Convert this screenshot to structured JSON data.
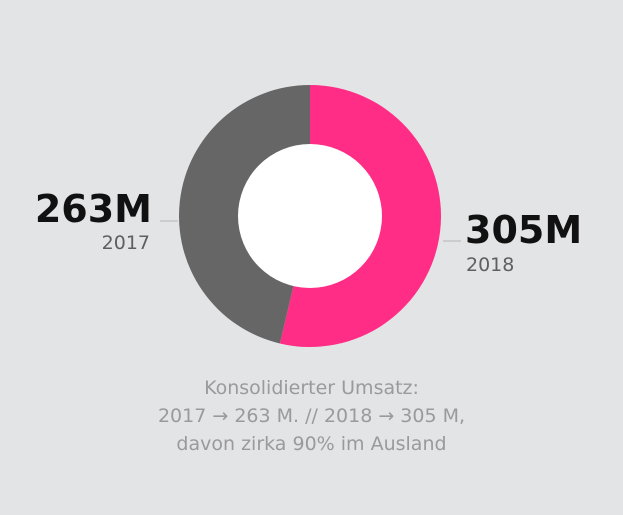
{
  "chart_data": {
    "type": "pie",
    "variant": "donut",
    "slices": [
      {
        "label": "2018",
        "value": 305,
        "value_label": "305M",
        "color": "#ff2d85"
      },
      {
        "label": "2017",
        "value": 263,
        "value_label": "263M",
        "color": "#666666"
      }
    ],
    "unit": "M",
    "caption_lines": [
      "Konsolidierter Umsatz:",
      "2017 → 263 M. // 2018 → 305 M,",
      "davon zirka 90% im Ausland"
    ]
  },
  "colors": {
    "background": "#e3e4e6",
    "accent": "#ff2d85",
    "secondary": "#666666",
    "hole": "#ffffff"
  }
}
